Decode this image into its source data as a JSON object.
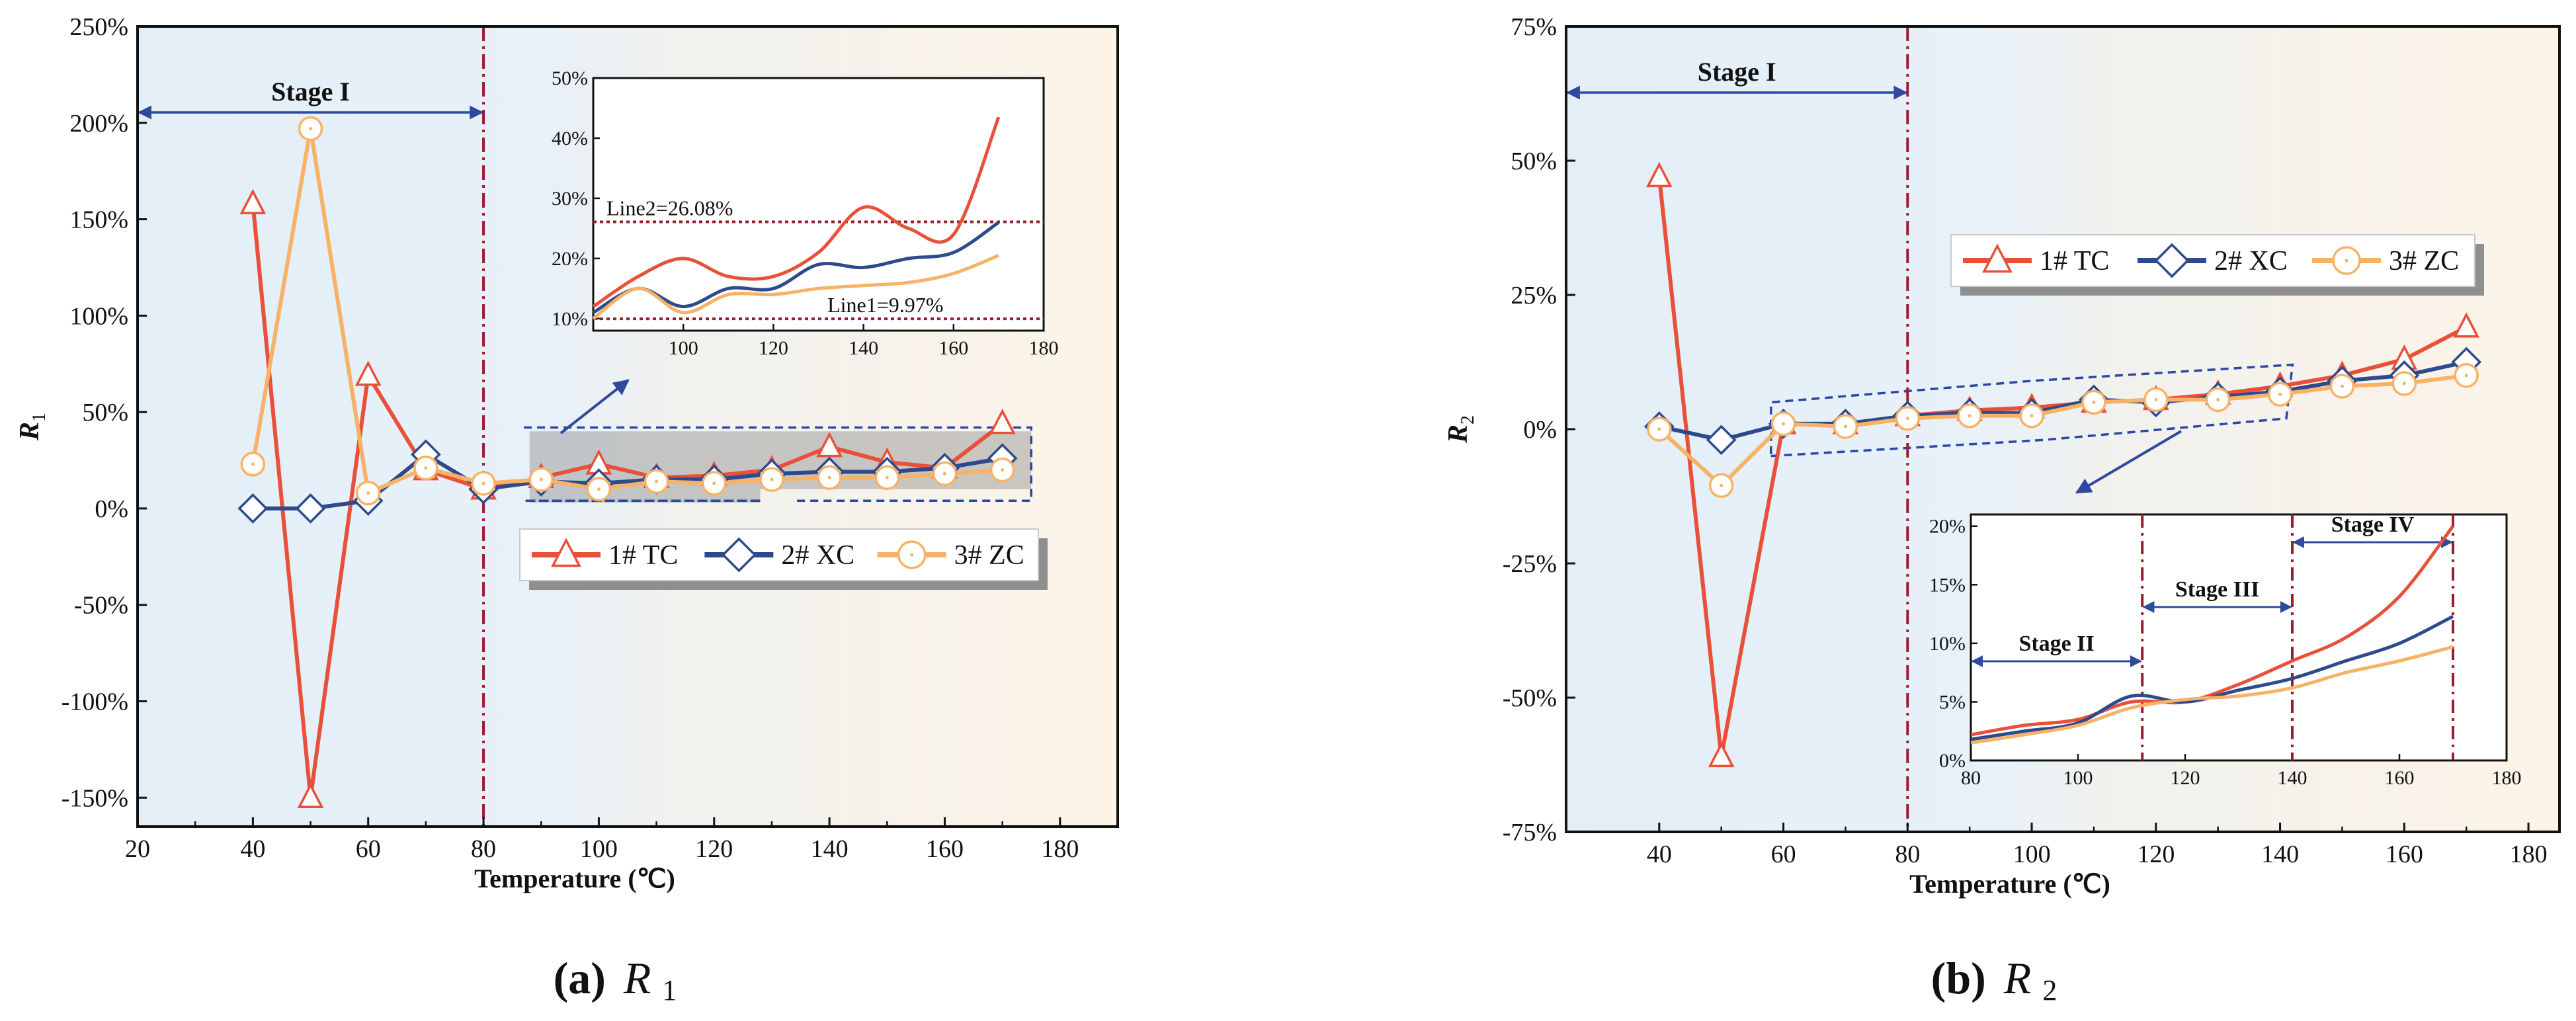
{
  "colors": {
    "tc": "#e8503a",
    "xc": "#2f4a8c",
    "zc": "#f8b266",
    "ref": "#9b1c2c",
    "arrow": "#2f4a9c",
    "bg_left": "#e3eef7",
    "bg_right": "#fdf4e7"
  },
  "icons": {
    "tc": "triangle-marker-icon",
    "xc": "diamond-marker-icon",
    "zc": "circle-dot-marker-icon"
  },
  "chart_data": [
    {
      "id": "a",
      "type": "line",
      "caption_tag": "(a)",
      "caption_var": "R",
      "caption_sub": "1",
      "ylabel": "R",
      "ylabel_sub": "1",
      "xlabel": "Temperature (℃)",
      "xlim": [
        20,
        190
      ],
      "ylim": [
        -165,
        250
      ],
      "xticks": [
        20,
        40,
        60,
        80,
        100,
        120,
        140,
        160,
        180
      ],
      "xtick_labels": [
        "20",
        "40",
        "60",
        "80",
        "100",
        "120",
        "140",
        "160",
        "180"
      ],
      "yticks": [
        -150,
        -100,
        -50,
        0,
        50,
        100,
        150,
        200,
        250
      ],
      "ytick_labels": [
        "-150%",
        "-100%",
        "-50%",
        "0%",
        "50%",
        "100%",
        "150%",
        "200%",
        "250%"
      ],
      "boundary_x": 80,
      "stage_label": "Stage I",
      "x": [
        40,
        50,
        60,
        70,
        80,
        90,
        100,
        110,
        120,
        130,
        140,
        150,
        160,
        170
      ],
      "series": [
        {
          "name": "1# TC",
          "values": [
            158,
            -150,
            69,
            20,
            10,
            16,
            23,
            16,
            17,
            20,
            32,
            24,
            21,
            44
          ]
        },
        {
          "name": "2# XC",
          "values": [
            0,
            0,
            4,
            28,
            10,
            14,
            13,
            15,
            15,
            18,
            19,
            19,
            21,
            26
          ]
        },
        {
          "name": "3# ZC",
          "values": [
            23,
            197,
            8,
            21,
            13,
            15,
            10,
            14,
            13,
            15,
            16,
            16,
            18,
            20
          ]
        }
      ],
      "inset": {
        "xlim": [
          80,
          180
        ],
        "ylim": [
          8,
          50
        ],
        "xticks": [
          100,
          120,
          140,
          160,
          180
        ],
        "xtick_labels": [
          "100",
          "120",
          "140",
          "160",
          "180"
        ],
        "yticks": [
          10,
          20,
          30,
          40,
          50
        ],
        "ytick_labels": [
          "10%",
          "20%",
          "30%",
          "40%",
          "50%"
        ],
        "x": [
          80,
          90,
          100,
          110,
          120,
          130,
          140,
          150,
          160,
          170
        ],
        "series": [
          {
            "name": "1# TC",
            "values": [
              12,
              17,
              20,
              17,
              17,
              21,
              28.5,
              25,
              24,
              43.5
            ]
          },
          {
            "name": "2# XC",
            "values": [
              11,
              15,
              12,
              15,
              15,
              19,
              18.5,
              20,
              21,
              26
            ]
          },
          {
            "name": "3# ZC",
            "values": [
              10,
              15,
              11,
              14,
              14,
              15,
              15.5,
              16,
              17.5,
              20.5
            ]
          }
        ],
        "ref_lines": [
          {
            "label": "Line2=26.08%",
            "value": 26.08
          },
          {
            "label": "Line1=9.97%",
            "value": 9.97
          }
        ]
      }
    },
    {
      "id": "b",
      "type": "line",
      "caption_tag": "(b)",
      "caption_var": "R",
      "caption_sub": "2",
      "ylabel": "R",
      "ylabel_sub": "2",
      "xlabel": "Temperature (℃)",
      "xlim": [
        25,
        185
      ],
      "ylim": [
        -75,
        75
      ],
      "xticks": [
        40,
        60,
        80,
        100,
        120,
        140,
        160,
        180
      ],
      "xtick_labels": [
        "40",
        "60",
        "80",
        "100",
        "120",
        "140",
        "160",
        "180"
      ],
      "yticks": [
        -75,
        -50,
        -25,
        0,
        25,
        50,
        75
      ],
      "ytick_labels": [
        "-75%",
        "-50%",
        "-25%",
        "0%",
        "25%",
        "50%",
        "75%"
      ],
      "boundary_x": 80,
      "stage_label": "Stage I",
      "x": [
        40,
        50,
        60,
        70,
        80,
        90,
        100,
        110,
        120,
        130,
        140,
        150,
        160,
        170
      ],
      "series": [
        {
          "name": "1# TC",
          "values": [
            47,
            -61,
            1,
            1,
            2.5,
            3.5,
            4,
            5,
            5.5,
            6.5,
            8,
            10,
            13,
            19
          ]
        },
        {
          "name": "2# XC",
          "values": [
            0.5,
            -2,
            1,
            1,
            2.5,
            3,
            3,
            5.5,
            5,
            6,
            7,
            9,
            10,
            12.5
          ]
        },
        {
          "name": "3# ZC",
          "values": [
            0,
            -10.5,
            1,
            0.5,
            2,
            2.5,
            2.5,
            5,
            5.5,
            5.5,
            6.5,
            8,
            8.5,
            10
          ]
        }
      ],
      "inset": {
        "xlim": [
          80,
          180
        ],
        "ylim": [
          0,
          21
        ],
        "xticks": [
          80,
          100,
          120,
          140,
          160,
          180
        ],
        "xtick_labels": [
          "80",
          "100",
          "120",
          "140",
          "160",
          "180"
        ],
        "yticks": [
          0,
          5,
          10,
          15,
          20
        ],
        "ytick_labels": [
          "0%",
          "5%",
          "10%",
          "15%",
          "20%"
        ],
        "x": [
          80,
          90,
          100,
          110,
          120,
          130,
          140,
          150,
          160,
          170
        ],
        "series": [
          {
            "name": "1# TC",
            "values": [
              2.2,
              3,
              3.5,
              5,
              5,
              6.5,
              8.5,
              10.5,
              14,
              20
            ]
          },
          {
            "name": "2# XC",
            "values": [
              1.8,
              2.5,
              3.2,
              5.5,
              5,
              6,
              7,
              8.5,
              10,
              12.3
            ]
          },
          {
            "name": "3# ZC",
            "values": [
              1.5,
              2.2,
              3,
              4.5,
              5.2,
              5.5,
              6.2,
              7.5,
              8.5,
              9.7
            ]
          }
        ],
        "stage_bounds": [
          112,
          140,
          170
        ],
        "stage_labels": [
          "Stage II",
          "Stage III",
          "Stage IV"
        ]
      }
    }
  ]
}
